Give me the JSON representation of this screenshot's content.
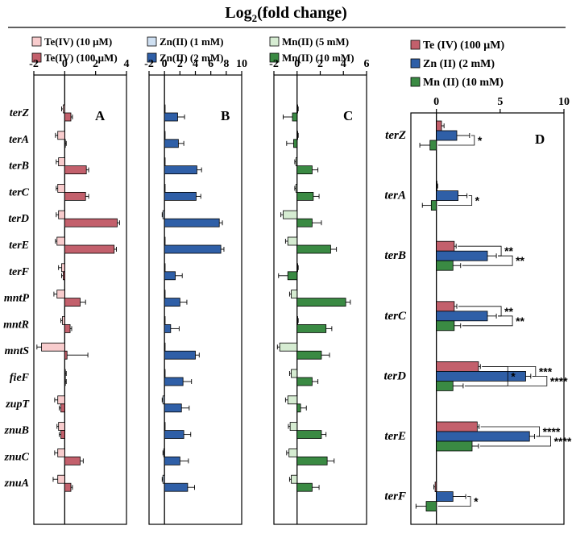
{
  "figure_title": "Log",
  "figure_title_sub": "2",
  "figure_title_rest": "(fold change)",
  "colors": {
    "te_light": "#f8cccd",
    "te_dark": "#c3606c",
    "zn_light": "#cfe0f2",
    "zn_dark": "#2f5fa7",
    "mn_light": "#d6ecd2",
    "mn_dark": "#3a8a43"
  },
  "chart_data": [
    {
      "id": "A",
      "type": "bar",
      "panel_label": "A",
      "xlim": [
        -2,
        4
      ],
      "ticks": [
        -2,
        0,
        2,
        4
      ],
      "categories": [
        "terZ",
        "terA",
        "terB",
        "terC",
        "terD",
        "terE",
        "terF",
        "mntP",
        "mntR",
        "mntS",
        "fieF",
        "zupT",
        "znuB",
        "znuC",
        "znuA"
      ],
      "series": [
        {
          "name": "Te(IV) (10 μM)",
          "color_key": "te_light",
          "values": [
            -0.1,
            -0.45,
            -0.4,
            -0.45,
            -0.4,
            -0.5,
            -0.2,
            -0.5,
            -0.15,
            -1.5,
            0.0,
            -0.45,
            -0.4,
            -0.45,
            -0.45
          ],
          "errors": [
            0.1,
            0.15,
            0.15,
            0.1,
            0.15,
            0.1,
            0.2,
            0.2,
            0.1,
            0.3,
            0.1,
            0.2,
            0.1,
            0.2,
            0.3
          ]
        },
        {
          "name": "Te(IV) (100 μM)",
          "color_key": "te_dark",
          "values": [
            0.4,
            0.0,
            1.4,
            1.35,
            3.4,
            3.2,
            -0.1,
            1.0,
            0.35,
            0.15,
            0.0,
            -0.25,
            -0.25,
            1.0,
            0.4
          ],
          "errors": [
            0.1,
            0.1,
            0.15,
            0.2,
            0.15,
            0.15,
            0.1,
            0.35,
            0.1,
            1.35,
            0.1,
            0.1,
            0.1,
            0.2,
            0.1
          ]
        }
      ]
    },
    {
      "id": "B",
      "type": "bar",
      "panel_label": "B",
      "xlim": [
        -2,
        10
      ],
      "ticks": [
        -2,
        0,
        2,
        4,
        6,
        8,
        10
      ],
      "categories": [
        "terZ",
        "terA",
        "terB",
        "terC",
        "terD",
        "terE",
        "terF",
        "mntP",
        "mntR",
        "mntS",
        "fieF",
        "zupT",
        "znuB",
        "znuC",
        "znuA"
      ],
      "series": [
        {
          "name": "Zn(II) (1 mM)",
          "color_key": "zn_light",
          "values": [
            0,
            0,
            0,
            0,
            -0.2,
            0,
            0,
            0,
            0,
            0,
            0,
            -0.2,
            0,
            -0.1,
            -0.2
          ],
          "errors": [
            0.05,
            0.05,
            0.05,
            0.05,
            0.1,
            0.05,
            0.05,
            0.05,
            0.05,
            0.05,
            0.05,
            0.1,
            0.05,
            0.1,
            0.1
          ]
        },
        {
          "name": "Zn(II) (2 mM)",
          "color_key": "zn_dark",
          "values": [
            1.7,
            1.8,
            4.2,
            4.1,
            7.1,
            7.3,
            1.4,
            2.0,
            0.8,
            4.0,
            2.4,
            2.2,
            2.5,
            2.0,
            3.0
          ],
          "errors": [
            0.9,
            0.7,
            0.6,
            0.6,
            0.4,
            0.4,
            0.9,
            0.9,
            1.1,
            0.5,
            1.1,
            1.0,
            0.9,
            1.1,
            0.9
          ]
        }
      ]
    },
    {
      "id": "C",
      "type": "bar",
      "panel_label": "C",
      "xlim": [
        -2,
        6
      ],
      "ticks": [
        -2,
        0,
        2,
        4,
        6
      ],
      "categories": [
        "terZ",
        "terA",
        "terB",
        "terC",
        "terD",
        "terE",
        "terF",
        "mntP",
        "mntR",
        "mntS",
        "fieF",
        "zupT",
        "znuB",
        "znuC",
        "znuA"
      ],
      "series": [
        {
          "name": "Mn(II) (5 mM)",
          "color_key": "mn_light",
          "values": [
            0,
            0,
            -0.1,
            -0.1,
            -1.2,
            -0.8,
            0,
            -0.5,
            0,
            -1.5,
            -0.5,
            -0.8,
            -0.6,
            -0.7,
            -0.5
          ],
          "errors": [
            0.1,
            0.1,
            0.1,
            0.1,
            0.2,
            0.2,
            0.1,
            0.15,
            0.1,
            0.2,
            0.15,
            0.2,
            0.15,
            0.2,
            0.15
          ]
        },
        {
          "name": "Mn(II) (10 mM)",
          "color_key": "mn_dark",
          "values": [
            -0.4,
            -0.3,
            1.3,
            1.4,
            1.3,
            2.9,
            -0.8,
            4.2,
            2.5,
            2.1,
            1.3,
            0.3,
            2.1,
            2.6,
            1.3
          ],
          "errors": [
            0.8,
            0.6,
            0.5,
            0.5,
            0.8,
            0.5,
            0.8,
            0.4,
            0.5,
            0.7,
            0.5,
            0.5,
            0.4,
            0.6,
            0.6
          ]
        }
      ]
    },
    {
      "id": "D",
      "type": "bar",
      "panel_label": "D",
      "xlim": [
        -2,
        10
      ],
      "ticks": [
        0,
        5,
        10
      ],
      "categories": [
        "terZ",
        "terA",
        "terB",
        "terC",
        "terD",
        "terE",
        "terF"
      ],
      "series": [
        {
          "name": "Te (IV) (100 μM)",
          "color_key": "te_dark",
          "values": [
            0.4,
            0.0,
            1.4,
            1.4,
            3.3,
            3.2,
            -0.1
          ],
          "errors": [
            0.2,
            0.1,
            0.15,
            0.2,
            0.15,
            0.15,
            0.1
          ]
        },
        {
          "name": "Zn (II) (2 mM)",
          "color_key": "zn_dark",
          "values": [
            1.6,
            1.7,
            4.0,
            4.0,
            7.0,
            7.3,
            1.3
          ],
          "errors": [
            1.0,
            0.7,
            0.7,
            0.7,
            0.4,
            0.4,
            1.0
          ]
        },
        {
          "name": "Mn (II) (10 mM)",
          "color_key": "mn_dark",
          "values": [
            -0.5,
            -0.4,
            1.3,
            1.4,
            1.3,
            2.8,
            -0.8
          ],
          "errors": [
            0.8,
            0.7,
            0.6,
            0.5,
            0.8,
            0.5,
            0.8
          ]
        }
      ],
      "significance": [
        {
          "category": "terZ",
          "pair": [
            "Zn (II) (2 mM)",
            "Mn (II) (10 mM)"
          ],
          "label": "*"
        },
        {
          "category": "terA",
          "pair": [
            "Zn (II) (2 mM)",
            "Mn (II) (10 mM)"
          ],
          "label": "*"
        },
        {
          "category": "terB",
          "pair": [
            "Te (IV) (100 μM)",
            "Zn (II) (2 mM)"
          ],
          "label": "**"
        },
        {
          "category": "terB",
          "pair": [
            "Zn (II) (2 mM)",
            "Mn (II) (10 mM)"
          ],
          "label": "**"
        },
        {
          "category": "terC",
          "pair": [
            "Te (IV) (100 μM)",
            "Zn (II) (2 mM)"
          ],
          "label": "**"
        },
        {
          "category": "terC",
          "pair": [
            "Zn (II) (2 mM)",
            "Mn (II) (10 mM)"
          ],
          "label": "**"
        },
        {
          "category": "terD",
          "pair": [
            "Te (IV) (100 μM)",
            "Zn (II) (2 mM)"
          ],
          "label": "***"
        },
        {
          "category": "terD",
          "pair": [
            "Zn (II) (2 mM)",
            "Mn (II) (10 mM)"
          ],
          "label": "****"
        },
        {
          "category": "terD",
          "pair": [
            "Te (IV) (100 μM)",
            "Mn (II) (10 mM)"
          ],
          "label": "*"
        },
        {
          "category": "terE",
          "pair": [
            "Te (IV) (100 μM)",
            "Zn (II) (2 mM)"
          ],
          "label": "****"
        },
        {
          "category": "terE",
          "pair": [
            "Zn (II) (2 mM)",
            "Mn (II) (10 mM)"
          ],
          "label": "****"
        },
        {
          "category": "terF",
          "pair": [
            "Zn (II) (2 mM)",
            "Mn (II) (10 mM)"
          ],
          "label": "*"
        }
      ]
    }
  ]
}
